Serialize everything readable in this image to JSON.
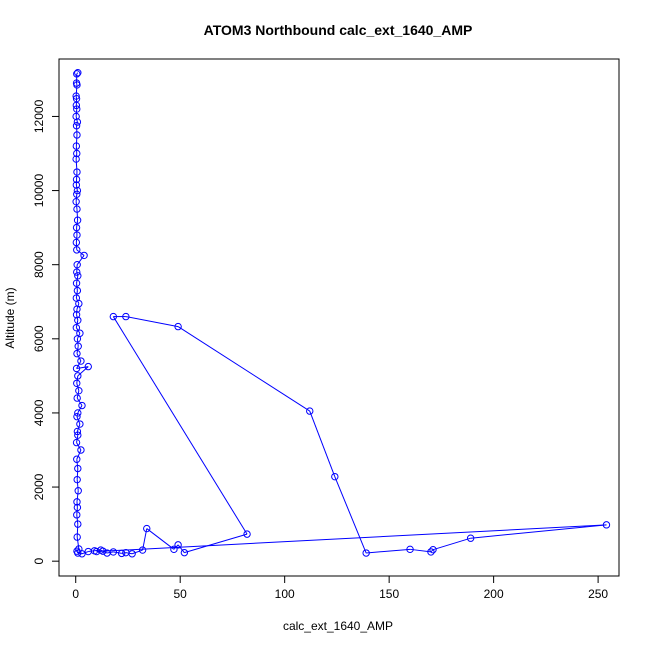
{
  "chart_data": {
    "type": "line",
    "title": "ATOM3 Northbound calc_ext_1640_AMP",
    "xlabel": "calc_ext_1640_AMP",
    "ylabel": "Altitude (m)",
    "xlim": [
      -8,
      260
    ],
    "ylim": [
      -400,
      13550
    ],
    "xticks": [
      0,
      50,
      100,
      150,
      200,
      250
    ],
    "yticks": [
      0,
      2000,
      4000,
      6000,
      8000,
      10000,
      12000
    ],
    "series_color": "#0000ff",
    "marker": "open-circle",
    "grid": false,
    "legend": "none",
    "series": [
      {
        "values": [
          [
            1,
            13180
          ],
          [
            0.5,
            13150
          ],
          [
            0.4,
            12900
          ],
          [
            0.6,
            12850
          ],
          [
            0.2,
            12550
          ],
          [
            0.4,
            12480
          ],
          [
            0.3,
            12300
          ],
          [
            0.5,
            12200
          ],
          [
            0.2,
            12000
          ],
          [
            0.8,
            11850
          ],
          [
            0.4,
            11750
          ],
          [
            0.6,
            11500
          ],
          [
            0.3,
            11200
          ],
          [
            0.5,
            11000
          ],
          [
            0.2,
            10850
          ],
          [
            0.6,
            10500
          ],
          [
            0.4,
            10300
          ],
          [
            0.3,
            10150
          ],
          [
            0.8,
            10000
          ],
          [
            0.5,
            9900
          ],
          [
            0.2,
            9700
          ],
          [
            0.6,
            9500
          ],
          [
            0.9,
            9200
          ],
          [
            0.4,
            9000
          ],
          [
            0.6,
            8800
          ],
          [
            0.3,
            8600
          ],
          [
            0.5,
            8400
          ],
          [
            4,
            8250
          ],
          [
            0.7,
            8000
          ],
          [
            0.5,
            7800
          ],
          [
            1,
            7700
          ],
          [
            0.4,
            7500
          ],
          [
            0.8,
            7300
          ],
          [
            0.3,
            7100
          ],
          [
            1.5,
            6950
          ],
          [
            0.6,
            6800
          ],
          [
            0.4,
            6650
          ],
          [
            1,
            6500
          ],
          [
            0.3,
            6300
          ],
          [
            2,
            6150
          ],
          [
            0.8,
            6000
          ],
          [
            1.2,
            5800
          ],
          [
            0.6,
            5600
          ],
          [
            2.5,
            5400
          ],
          [
            0.4,
            5200
          ],
          [
            6,
            5250
          ],
          [
            1,
            5000
          ],
          [
            0.5,
            4800
          ],
          [
            1.5,
            4600
          ],
          [
            0.7,
            4400
          ],
          [
            3,
            4200
          ],
          [
            1,
            4000
          ],
          [
            0.6,
            3900
          ],
          [
            2,
            3700
          ],
          [
            0.8,
            3500
          ],
          [
            1,
            3400
          ],
          [
            0.4,
            3200
          ],
          [
            2.5,
            3000
          ],
          [
            0.5,
            2750
          ],
          [
            1,
            2500
          ],
          [
            0.7,
            2200
          ],
          [
            1.2,
            1900
          ],
          [
            0.6,
            1600
          ],
          [
            0.8,
            1450
          ],
          [
            0.5,
            1250
          ],
          [
            1,
            1000
          ],
          [
            0.7,
            650
          ],
          [
            1.5,
            330
          ],
          [
            0.6,
            270
          ],
          [
            1,
            220
          ],
          [
            3,
            200
          ],
          [
            6,
            260
          ],
          [
            9,
            280
          ],
          [
            12,
            300
          ],
          [
            15,
            220
          ],
          [
            18,
            250
          ],
          [
            22,
            210
          ],
          [
            24,
            230
          ],
          [
            27,
            200
          ],
          [
            32,
            300
          ],
          [
            34,
            880
          ],
          [
            47,
            320
          ],
          [
            49,
            440
          ],
          [
            52,
            230
          ],
          [
            82,
            730
          ],
          [
            18,
            6600
          ],
          [
            24,
            6600
          ],
          [
            49,
            6330
          ],
          [
            112,
            4050
          ],
          [
            124,
            2280
          ],
          [
            139,
            220
          ],
          [
            160,
            320
          ],
          [
            170,
            250
          ],
          [
            171,
            310
          ],
          [
            189,
            620
          ],
          [
            254,
            980
          ],
          [
            10,
            260
          ],
          [
            13,
            270
          ]
        ]
      }
    ]
  }
}
